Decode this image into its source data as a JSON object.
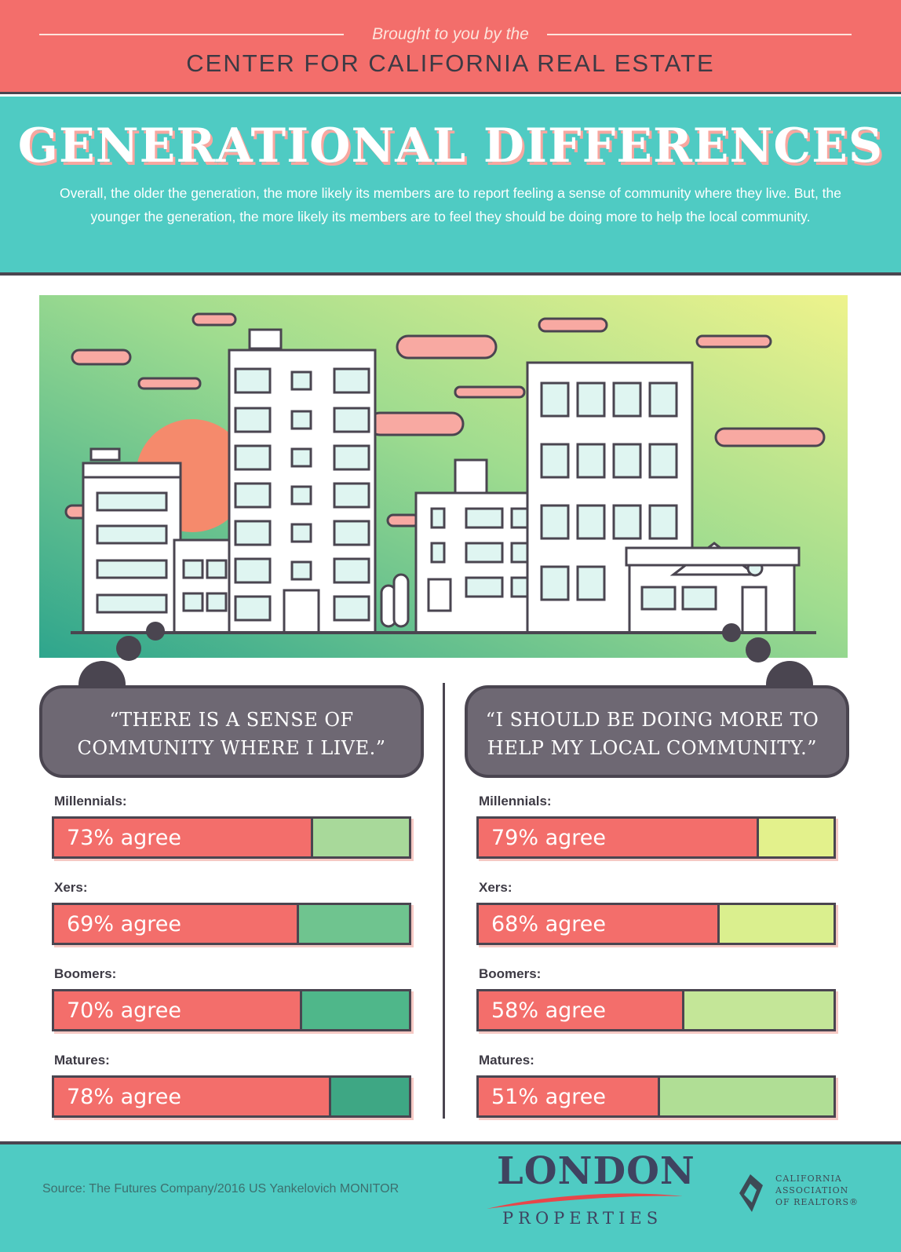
{
  "header": {
    "brought_by": "Brought to you by the",
    "org_name": "CENTER FOR CALIFORNIA REAL ESTATE"
  },
  "title": "GENERATIONAL DIFFERENCES",
  "intro": "Overall, the older the generation, the more likely its members are to report feeling a sense of community where they live. But, the younger the generation, the more likely its members are to feel they should be doing more to help the local community.",
  "colors": {
    "coral": "#f36e6b",
    "teal": "#4fcbc3",
    "dark": "#4a4550",
    "bubble": "#6e6873"
  },
  "chart_data": [
    {
      "type": "bar",
      "title": "“THERE IS A SENSE OF COMMUNITY WHERE I LIVE.”",
      "categories": [
        "Millennials:",
        "Xers:",
        "Boomers:",
        "Matures:"
      ],
      "values": [
        73,
        69,
        70,
        78
      ],
      "value_labels": [
        "73% agree",
        "69% agree",
        "70% agree",
        "78% agree"
      ],
      "remainder_colors": [
        "#a8d99a",
        "#6fc48f",
        "#4fb78a",
        "#3ea784"
      ],
      "ylim": [
        0,
        100
      ]
    },
    {
      "type": "bar",
      "title": "“I SHOULD BE DOING MORE TO HELP MY LOCAL COMMUNITY.”",
      "categories": [
        "Millennials:",
        "Xers:",
        "Boomers:",
        "Matures:"
      ],
      "values": [
        79,
        68,
        58,
        51
      ],
      "value_labels": [
        "79% agree",
        "68% agree",
        "58% agree",
        "51% agree"
      ],
      "remainder_colors": [
        "#e3f18c",
        "#daef8e",
        "#c4e698",
        "#b0de95"
      ],
      "ylim": [
        0,
        100
      ]
    }
  ],
  "footer": {
    "source": "Source: The Futures Company/2016 US Yankelovich MONITOR",
    "logo_main": "LONDON",
    "logo_sub": "PROPERTIES",
    "assoc_line1": "CALIFORNIA",
    "assoc_line2": "ASSOCIATION",
    "assoc_line3": "OF REALTORS®"
  }
}
